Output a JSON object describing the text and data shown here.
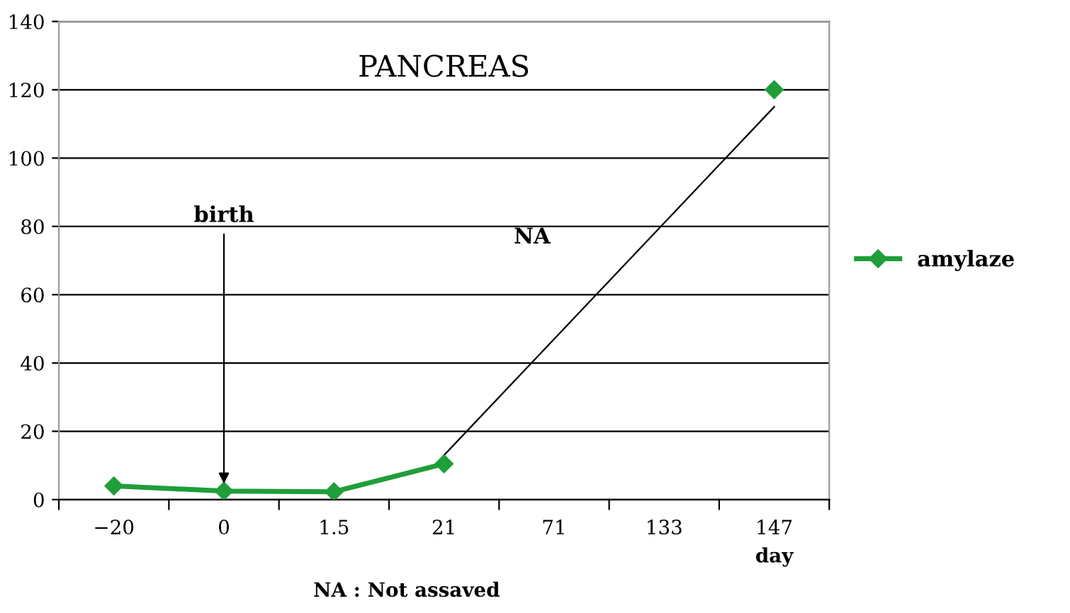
{
  "chart_data": {
    "type": "line",
    "title": "PANCREAS",
    "xlabel": "day",
    "categories": [
      "−20",
      "0",
      "1.5",
      "21",
      "71",
      "133",
      "147"
    ],
    "series": [
      {
        "name": "amylaze",
        "color": "#1f9e3a",
        "values": [
          4,
          2.5,
          2.3,
          10.5,
          null,
          null,
          120
        ]
      },
      {
        "color": "#000000",
        "values": [
          null,
          null,
          null,
          13,
          null,
          null,
          115
        ],
        "marker": "none"
      }
    ],
    "ylim": [
      0,
      140
    ],
    "yticks": [
      0,
      20,
      40,
      60,
      80,
      100,
      120,
      140
    ],
    "grid": "y",
    "legend": "right",
    "marker": "diamond",
    "annotations": [
      {
        "text": "birth",
        "x": "0",
        "y": 2.5
      },
      "NA",
      "NA : Not assaved"
    ]
  }
}
